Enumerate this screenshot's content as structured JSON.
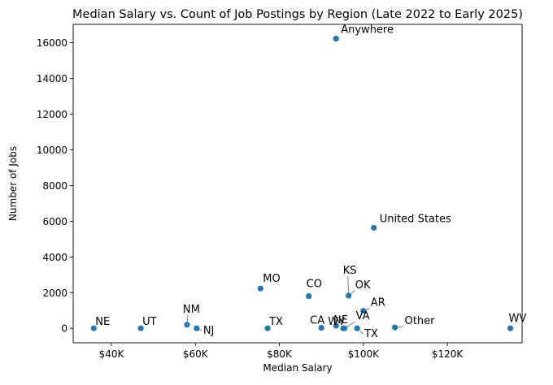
{
  "chart_data": {
    "type": "scatter",
    "title": "Median Salary vs. Count of Job Postings by Region (Late 2022 to Early 2025)",
    "xlabel": "Median Salary",
    "ylabel": "Number of Jobs",
    "xlim": [
      30900,
      137800
    ],
    "ylim": [
      -810,
      17030
    ],
    "xticks": [
      {
        "value": 40000,
        "label": "$40K"
      },
      {
        "value": 60000,
        "label": "$60K"
      },
      {
        "value": 80000,
        "label": "$80K"
      },
      {
        "value": 100000,
        "label": "$100K"
      },
      {
        "value": 120000,
        "label": "$120K"
      }
    ],
    "yticks": [
      {
        "value": 0,
        "label": "0"
      },
      {
        "value": 2000,
        "label": "2000"
      },
      {
        "value": 4000,
        "label": "4000"
      },
      {
        "value": 6000,
        "label": "6000"
      },
      {
        "value": 8000,
        "label": "8000"
      },
      {
        "value": 10000,
        "label": "10000"
      },
      {
        "value": 12000,
        "label": "12000"
      },
      {
        "value": 14000,
        "label": "14000"
      },
      {
        "value": 16000,
        "label": "16000"
      }
    ],
    "grid": false,
    "legend": "none",
    "marker_color": "#1f77b4",
    "points": [
      {
        "label": "Anywhere",
        "x": 93500,
        "y": 16230
      },
      {
        "label": "United States",
        "x": 102500,
        "y": 5630
      },
      {
        "label": "MO",
        "x": 75500,
        "y": 2230
      },
      {
        "label": "CO",
        "x": 87000,
        "y": 1800
      },
      {
        "label": "KS",
        "x": 96500,
        "y": 1830
      },
      {
        "label": "OK",
        "x": 96500,
        "y": 1830
      },
      {
        "label": "AR",
        "x": 100000,
        "y": 980
      },
      {
        "label": "WY",
        "x": 93500,
        "y": 150
      },
      {
        "label": "NE",
        "x": 35800,
        "y": 0
      },
      {
        "label": "UT",
        "x": 47000,
        "y": 0
      },
      {
        "label": "NM",
        "x": 58000,
        "y": 200
      },
      {
        "label": "NJ",
        "x": 60300,
        "y": 0
      },
      {
        "label": "TX",
        "x": 77200,
        "y": 0
      },
      {
        "label": "CA",
        "x": 90000,
        "y": 30
      },
      {
        "label": "NE",
        "x": 95200,
        "y": 0
      },
      {
        "label": "VA",
        "x": 95500,
        "y": 0
      },
      {
        "label": "TX",
        "x": 98500,
        "y": 0
      },
      {
        "label": "Other",
        "x": 107500,
        "y": 50
      },
      {
        "label": "WV",
        "x": 135000,
        "y": 0
      }
    ]
  }
}
